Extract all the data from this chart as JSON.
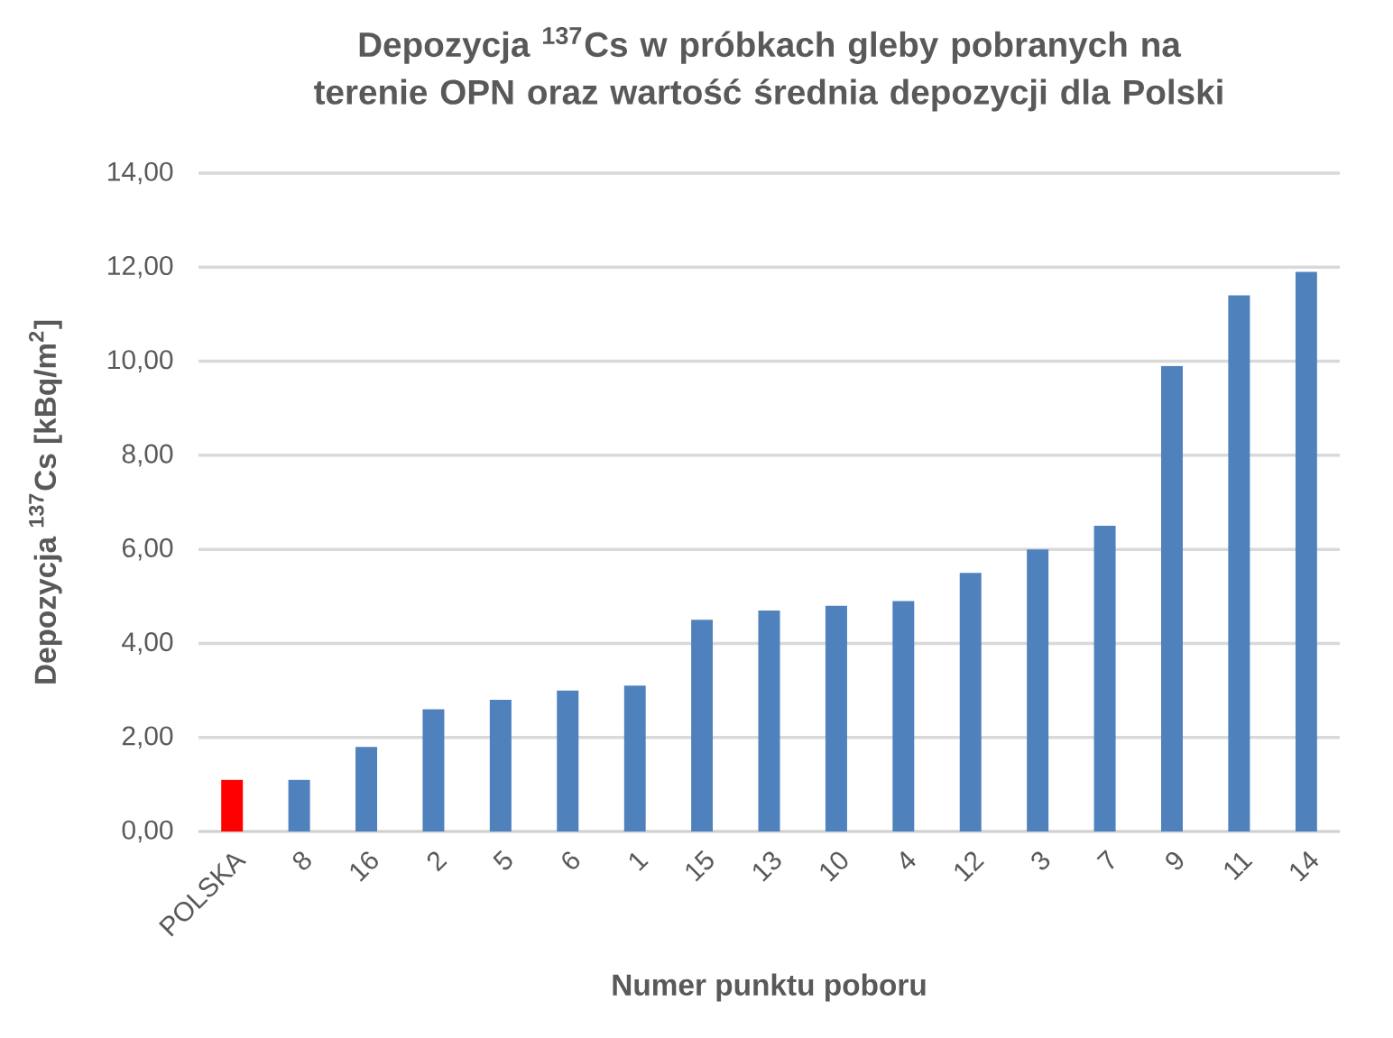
{
  "chart_data": {
    "type": "bar",
    "title": "Depozycja $^{137}$Cs w próbkach gleby pobranych na terenie OPN oraz wartość średnia depozycji dla Polski",
    "xlabel": "Numer punktu poboru",
    "ylabel": "Depozycja $^{137}$Cs [kBq/m$^{2}$]",
    "categories": [
      "POLSKA",
      "8",
      "16",
      "2",
      "5",
      "6",
      "1",
      "15",
      "13",
      "10",
      "4",
      "12",
      "3",
      "7",
      "9",
      "11",
      "14"
    ],
    "values": [
      1.1,
      1.1,
      1.8,
      2.6,
      2.8,
      3.0,
      3.1,
      4.5,
      4.7,
      4.8,
      4.9,
      5.5,
      6.0,
      6.5,
      9.9,
      11.4,
      11.9
    ],
    "colors": [
      "#ff0000",
      "#4f81bd",
      "#4f81bd",
      "#4f81bd",
      "#4f81bd",
      "#4f81bd",
      "#4f81bd",
      "#4f81bd",
      "#4f81bd",
      "#4f81bd",
      "#4f81bd",
      "#4f81bd",
      "#4f81bd",
      "#4f81bd",
      "#4f81bd",
      "#4f81bd",
      "#4f81bd"
    ],
    "ylim": [
      0,
      14
    ],
    "yticks": [
      {
        "value": 0,
        "label": "0,00"
      },
      {
        "value": 2,
        "label": "2,00"
      },
      {
        "value": 4,
        "label": "4,00"
      },
      {
        "value": 6,
        "label": "6,00"
      },
      {
        "value": 8,
        "label": "8,00"
      },
      {
        "value": 10,
        "label": "10,00"
      },
      {
        "value": 12,
        "label": "12,00"
      },
      {
        "value": 14,
        "label": "14,00"
      }
    ],
    "grid": "y"
  }
}
